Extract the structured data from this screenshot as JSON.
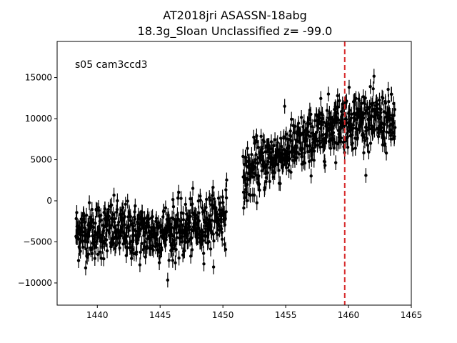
{
  "chart_data": {
    "type": "scatter",
    "title_line1": "AT2018jri  ASASSN-18abg",
    "title_line2": "18.3g_Sloan Unclassified z= -99.0",
    "annotation": "s05 cam3ccd3",
    "xlim": [
      1436.8,
      1465
    ],
    "ylim": [
      -12700,
      19400
    ],
    "xticks": [
      1440,
      1445,
      1450,
      1455,
      1460,
      1465
    ],
    "xtick_labels": [
      "1440",
      "1445",
      "1450",
      "1455",
      "1460",
      "1465"
    ],
    "yticks": [
      -10000,
      -5000,
      0,
      5000,
      10000,
      15000
    ],
    "ytick_labels": [
      "−10000",
      "−5000",
      "0",
      "5000",
      "10000",
      "15000"
    ],
    "grid": false,
    "marker_color": "#000000",
    "vline": {
      "x": 1459.7,
      "color": "#d62728",
      "style": "dashed"
    },
    "trend": [
      {
        "x": 1438.3,
        "y": -3800
      },
      {
        "x": 1441.0,
        "y": -3500
      },
      {
        "x": 1444.0,
        "y": -4000
      },
      {
        "x": 1447.0,
        "y": -3500
      },
      {
        "x": 1449.0,
        "y": -2500
      },
      {
        "x": 1450.2,
        "y": -1500
      },
      {
        "x": 1451.5,
        "y": 2500
      },
      {
        "x": 1453.0,
        "y": 4500
      },
      {
        "x": 1455.0,
        "y": 6000
      },
      {
        "x": 1457.0,
        "y": 7500
      },
      {
        "x": 1459.0,
        "y": 9500
      },
      {
        "x": 1461.0,
        "y": 10000
      },
      {
        "x": 1463.6,
        "y": 9500
      }
    ],
    "segments": [
      {
        "x_start": 1438.3,
        "x_end": 1450.3
      },
      {
        "x_start": 1451.6,
        "x_end": 1463.7
      }
    ],
    "scatter_sigma": 1700,
    "error_bar": 900,
    "points_per_day": 48
  }
}
